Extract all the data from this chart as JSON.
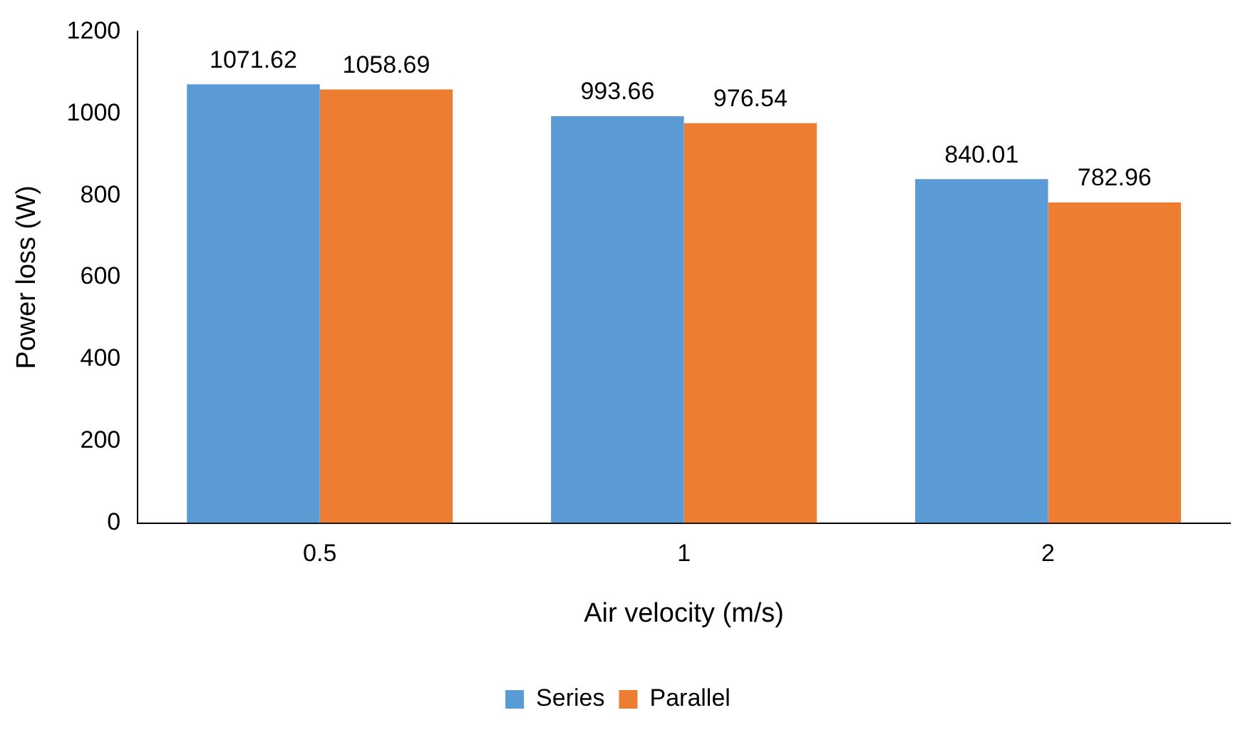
{
  "chart_data": {
    "type": "bar",
    "xlabel": "Air velocity (m/s)",
    "ylabel": "Power loss (W)",
    "categories": [
      "0.5",
      "1",
      "2"
    ],
    "series": [
      {
        "name": "Series",
        "color": "#5b9bd5",
        "values": [
          1071.62,
          993.66,
          840.01
        ]
      },
      {
        "name": "Parallel",
        "color": "#ed7d31",
        "values": [
          1058.69,
          976.54,
          782.96
        ]
      }
    ],
    "ylim": [
      0,
      1200
    ],
    "yticks": [
      0,
      200,
      400,
      600,
      800,
      1000,
      1200
    ],
    "grid": false,
    "legend": "bottom",
    "data_labels": true
  }
}
